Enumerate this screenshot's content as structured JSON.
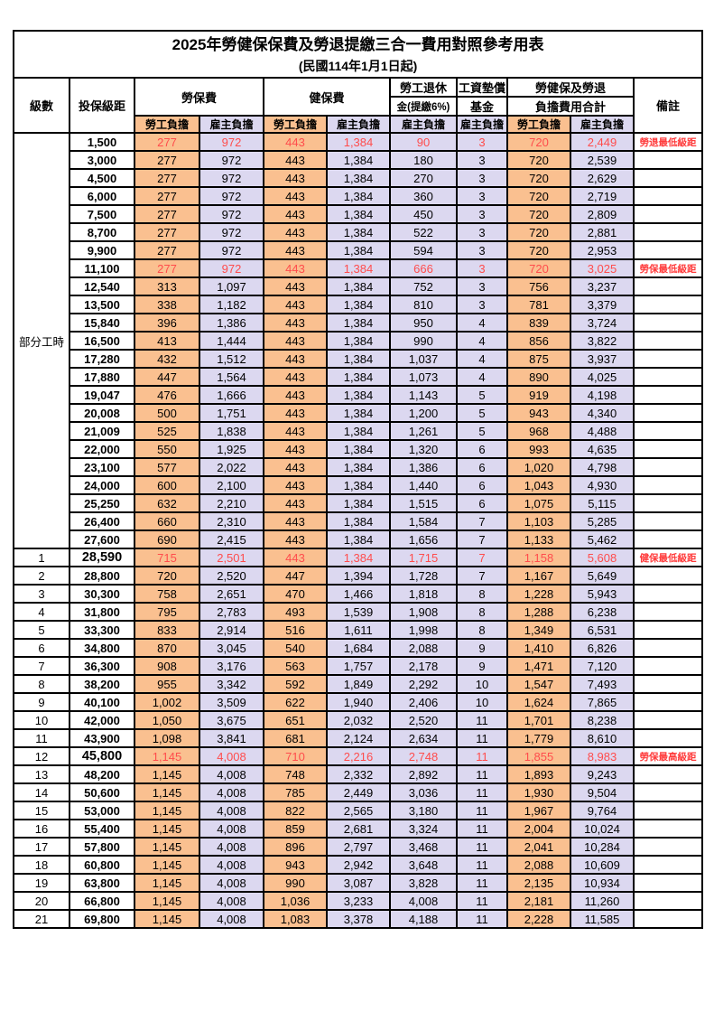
{
  "title": "2025年勞健保保費及勞退提繳三合一費用對照參考用表",
  "subtitle": "(民國114年1月1日起)",
  "colors": {
    "employee_col_bg": "#FAC090",
    "employer_col_bg": "#DCD8F0",
    "highlight_text": "#FF4C4C",
    "remark_text": "#FF3B3B",
    "grid": "#000000"
  },
  "header": {
    "level": "級數",
    "bracket": "投保級距",
    "labor_ins": "勞保費",
    "health_ins": "健保費",
    "pension_line1": "勞工退休",
    "pension_line2": "金(提繳6%)",
    "wage_fund_line1": "工資墊償",
    "wage_fund_line2": "基金",
    "total_line1": "勞健保及勞退",
    "total_line2": "負擔費用合計",
    "remark": "備註",
    "employee": "勞工負擔",
    "employer": "雇主負擔"
  },
  "part_time_label": "部分工時",
  "part_time_rowspan": 23,
  "value_col_styles": [
    "emp",
    "empr",
    "emp",
    "empr",
    "empr",
    "empr",
    "emp",
    "empr"
  ],
  "rows": [
    {
      "pt": true,
      "level": "",
      "bracket": "1,500",
      "values": [
        "277",
        "972",
        "443",
        "1,384",
        "90",
        "3",
        "720",
        "2,449"
      ],
      "remark": "勞退最低級距",
      "highlight": true
    },
    {
      "pt": true,
      "level": "",
      "bracket": "3,000",
      "values": [
        "277",
        "972",
        "443",
        "1,384",
        "180",
        "3",
        "720",
        "2,539"
      ],
      "remark": ""
    },
    {
      "pt": true,
      "level": "",
      "bracket": "4,500",
      "values": [
        "277",
        "972",
        "443",
        "1,384",
        "270",
        "3",
        "720",
        "2,629"
      ],
      "remark": ""
    },
    {
      "pt": true,
      "level": "",
      "bracket": "6,000",
      "values": [
        "277",
        "972",
        "443",
        "1,384",
        "360",
        "3",
        "720",
        "2,719"
      ],
      "remark": ""
    },
    {
      "pt": true,
      "level": "",
      "bracket": "7,500",
      "values": [
        "277",
        "972",
        "443",
        "1,384",
        "450",
        "3",
        "720",
        "2,809"
      ],
      "remark": ""
    },
    {
      "pt": true,
      "level": "",
      "bracket": "8,700",
      "values": [
        "277",
        "972",
        "443",
        "1,384",
        "522",
        "3",
        "720",
        "2,881"
      ],
      "remark": ""
    },
    {
      "pt": true,
      "level": "",
      "bracket": "9,900",
      "values": [
        "277",
        "972",
        "443",
        "1,384",
        "594",
        "3",
        "720",
        "2,953"
      ],
      "remark": ""
    },
    {
      "pt": true,
      "level": "",
      "bracket": "11,100",
      "values": [
        "277",
        "972",
        "443",
        "1,384",
        "666",
        "3",
        "720",
        "3,025"
      ],
      "remark": "勞保最低級距",
      "highlight": true
    },
    {
      "pt": true,
      "level": "",
      "bracket": "12,540",
      "values": [
        "313",
        "1,097",
        "443",
        "1,384",
        "752",
        "3",
        "756",
        "3,237"
      ],
      "remark": ""
    },
    {
      "pt": true,
      "level": "",
      "bracket": "13,500",
      "values": [
        "338",
        "1,182",
        "443",
        "1,384",
        "810",
        "3",
        "781",
        "3,379"
      ],
      "remark": ""
    },
    {
      "pt": true,
      "level": "",
      "bracket": "15,840",
      "values": [
        "396",
        "1,386",
        "443",
        "1,384",
        "950",
        "4",
        "839",
        "3,724"
      ],
      "remark": ""
    },
    {
      "pt": true,
      "level": "",
      "bracket": "16,500",
      "values": [
        "413",
        "1,444",
        "443",
        "1,384",
        "990",
        "4",
        "856",
        "3,822"
      ],
      "remark": ""
    },
    {
      "pt": true,
      "level": "",
      "bracket": "17,280",
      "values": [
        "432",
        "1,512",
        "443",
        "1,384",
        "1,037",
        "4",
        "875",
        "3,937"
      ],
      "remark": ""
    },
    {
      "pt": true,
      "level": "",
      "bracket": "17,880",
      "values": [
        "447",
        "1,564",
        "443",
        "1,384",
        "1,073",
        "4",
        "890",
        "4,025"
      ],
      "remark": ""
    },
    {
      "pt": true,
      "level": "",
      "bracket": "19,047",
      "values": [
        "476",
        "1,666",
        "443",
        "1,384",
        "1,143",
        "5",
        "919",
        "4,198"
      ],
      "remark": ""
    },
    {
      "pt": true,
      "level": "",
      "bracket": "20,008",
      "values": [
        "500",
        "1,751",
        "443",
        "1,384",
        "1,200",
        "5",
        "943",
        "4,340"
      ],
      "remark": ""
    },
    {
      "pt": true,
      "level": "",
      "bracket": "21,009",
      "values": [
        "525",
        "1,838",
        "443",
        "1,384",
        "1,261",
        "5",
        "968",
        "4,488"
      ],
      "remark": ""
    },
    {
      "pt": true,
      "level": "",
      "bracket": "22,000",
      "values": [
        "550",
        "1,925",
        "443",
        "1,384",
        "1,320",
        "6",
        "993",
        "4,635"
      ],
      "remark": ""
    },
    {
      "pt": true,
      "level": "",
      "bracket": "23,100",
      "values": [
        "577",
        "2,022",
        "443",
        "1,384",
        "1,386",
        "6",
        "1,020",
        "4,798"
      ],
      "remark": ""
    },
    {
      "pt": true,
      "level": "",
      "bracket": "24,000",
      "values": [
        "600",
        "2,100",
        "443",
        "1,384",
        "1,440",
        "6",
        "1,043",
        "4,930"
      ],
      "remark": ""
    },
    {
      "pt": true,
      "level": "",
      "bracket": "25,250",
      "values": [
        "632",
        "2,210",
        "443",
        "1,384",
        "1,515",
        "6",
        "1,075",
        "5,115"
      ],
      "remark": ""
    },
    {
      "pt": true,
      "level": "",
      "bracket": "26,400",
      "values": [
        "660",
        "2,310",
        "443",
        "1,384",
        "1,584",
        "7",
        "1,103",
        "5,285"
      ],
      "remark": ""
    },
    {
      "pt": true,
      "level": "",
      "bracket": "27,600",
      "values": [
        "690",
        "2,415",
        "443",
        "1,384",
        "1,656",
        "7",
        "1,133",
        "5,462"
      ],
      "remark": ""
    },
    {
      "level": "1",
      "bracket": "28,590",
      "values": [
        "715",
        "2,501",
        "443",
        "1,384",
        "1,715",
        "7",
        "1,158",
        "5,608"
      ],
      "remark": "健保最低級距",
      "highlight": true,
      "bold": true
    },
    {
      "level": "2",
      "bracket": "28,800",
      "values": [
        "720",
        "2,520",
        "447",
        "1,394",
        "1,728",
        "7",
        "1,167",
        "5,649"
      ],
      "remark": ""
    },
    {
      "level": "3",
      "bracket": "30,300",
      "values": [
        "758",
        "2,651",
        "470",
        "1,466",
        "1,818",
        "8",
        "1,228",
        "5,943"
      ],
      "remark": ""
    },
    {
      "level": "4",
      "bracket": "31,800",
      "values": [
        "795",
        "2,783",
        "493",
        "1,539",
        "1,908",
        "8",
        "1,288",
        "6,238"
      ],
      "remark": ""
    },
    {
      "level": "5",
      "bracket": "33,300",
      "values": [
        "833",
        "2,914",
        "516",
        "1,611",
        "1,998",
        "8",
        "1,349",
        "6,531"
      ],
      "remark": ""
    },
    {
      "level": "6",
      "bracket": "34,800",
      "values": [
        "870",
        "3,045",
        "540",
        "1,684",
        "2,088",
        "9",
        "1,410",
        "6,826"
      ],
      "remark": ""
    },
    {
      "level": "7",
      "bracket": "36,300",
      "values": [
        "908",
        "3,176",
        "563",
        "1,757",
        "2,178",
        "9",
        "1,471",
        "7,120"
      ],
      "remark": ""
    },
    {
      "level": "8",
      "bracket": "38,200",
      "values": [
        "955",
        "3,342",
        "592",
        "1,849",
        "2,292",
        "10",
        "1,547",
        "7,493"
      ],
      "remark": ""
    },
    {
      "level": "9",
      "bracket": "40,100",
      "values": [
        "1,002",
        "3,509",
        "622",
        "1,940",
        "2,406",
        "10",
        "1,624",
        "7,865"
      ],
      "remark": ""
    },
    {
      "level": "10",
      "bracket": "42,000",
      "values": [
        "1,050",
        "3,675",
        "651",
        "2,032",
        "2,520",
        "11",
        "1,701",
        "8,238"
      ],
      "remark": ""
    },
    {
      "level": "11",
      "bracket": "43,900",
      "values": [
        "1,098",
        "3,841",
        "681",
        "2,124",
        "2,634",
        "11",
        "1,779",
        "8,610"
      ],
      "remark": ""
    },
    {
      "level": "12",
      "bracket": "45,800",
      "values": [
        "1,145",
        "4,008",
        "710",
        "2,216",
        "2,748",
        "11",
        "1,855",
        "8,983"
      ],
      "remark": "勞保最高級距",
      "highlight": true,
      "bold": true
    },
    {
      "level": "13",
      "bracket": "48,200",
      "values": [
        "1,145",
        "4,008",
        "748",
        "2,332",
        "2,892",
        "11",
        "1,893",
        "9,243"
      ],
      "remark": ""
    },
    {
      "level": "14",
      "bracket": "50,600",
      "values": [
        "1,145",
        "4,008",
        "785",
        "2,449",
        "3,036",
        "11",
        "1,930",
        "9,504"
      ],
      "remark": ""
    },
    {
      "level": "15",
      "bracket": "53,000",
      "values": [
        "1,145",
        "4,008",
        "822",
        "2,565",
        "3,180",
        "11",
        "1,967",
        "9,764"
      ],
      "remark": ""
    },
    {
      "level": "16",
      "bracket": "55,400",
      "values": [
        "1,145",
        "4,008",
        "859",
        "2,681",
        "3,324",
        "11",
        "2,004",
        "10,024"
      ],
      "remark": ""
    },
    {
      "level": "17",
      "bracket": "57,800",
      "values": [
        "1,145",
        "4,008",
        "896",
        "2,797",
        "3,468",
        "11",
        "2,041",
        "10,284"
      ],
      "remark": ""
    },
    {
      "level": "18",
      "bracket": "60,800",
      "values": [
        "1,145",
        "4,008",
        "943",
        "2,942",
        "3,648",
        "11",
        "2,088",
        "10,609"
      ],
      "remark": ""
    },
    {
      "level": "19",
      "bracket": "63,800",
      "values": [
        "1,145",
        "4,008",
        "990",
        "3,087",
        "3,828",
        "11",
        "2,135",
        "10,934"
      ],
      "remark": ""
    },
    {
      "level": "20",
      "bracket": "66,800",
      "values": [
        "1,145",
        "4,008",
        "1,036",
        "3,233",
        "4,008",
        "11",
        "2,181",
        "11,260"
      ],
      "remark": ""
    },
    {
      "level": "21",
      "bracket": "69,800",
      "values": [
        "1,145",
        "4,008",
        "1,083",
        "3,378",
        "4,188",
        "11",
        "2,228",
        "11,585"
      ],
      "remark": ""
    }
  ]
}
